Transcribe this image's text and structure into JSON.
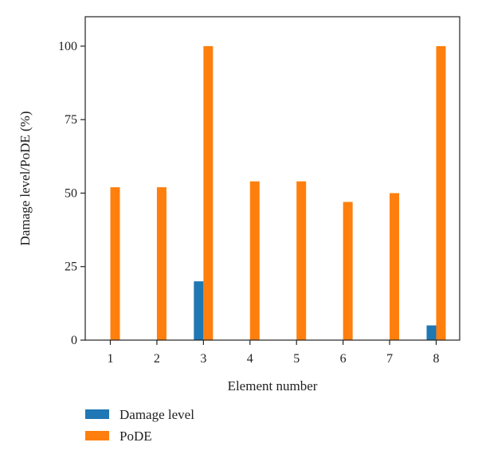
{
  "chart_data": {
    "type": "bar",
    "xlabel": "Element number",
    "ylabel": "Damage level/PoDE (%)",
    "categories": [
      "1",
      "2",
      "3",
      "4",
      "5",
      "6",
      "7",
      "8"
    ],
    "ylim": [
      0,
      110
    ],
    "yticks": [
      0,
      25,
      50,
      75,
      100
    ],
    "grid": false,
    "legend_position": "bottom-left",
    "series": [
      {
        "name": "Damage level",
        "color": "#1f77b4",
        "values": [
          0,
          0,
          20,
          0,
          0,
          0,
          0,
          5
        ]
      },
      {
        "name": "PoDE",
        "color": "#ff7f0e",
        "values": [
          52,
          52,
          100,
          54,
          54,
          47,
          50,
          100
        ]
      }
    ]
  }
}
